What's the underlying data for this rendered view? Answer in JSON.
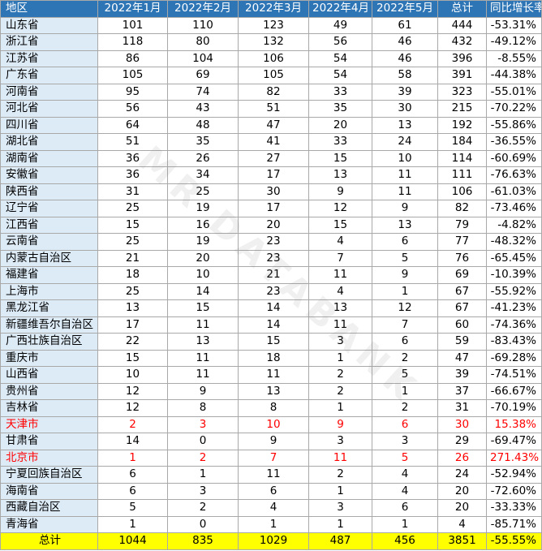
{
  "headers": [
    "地区",
    "2022年1月",
    "2022年2月",
    "2022年3月",
    "2022年4月",
    "2022年5月",
    "总计",
    "同比增长率"
  ],
  "rows": [
    {
      "region": "山东省",
      "m1": "101",
      "m2": "110",
      "m3": "123",
      "m4": "49",
      "m5": "61",
      "total": "444",
      "rate": "-53.31%"
    },
    {
      "region": "浙江省",
      "m1": "118",
      "m2": "80",
      "m3": "132",
      "m4": "56",
      "m5": "46",
      "total": "432",
      "rate": "-49.12%"
    },
    {
      "region": "江苏省",
      "m1": "86",
      "m2": "104",
      "m3": "106",
      "m4": "54",
      "m5": "46",
      "total": "396",
      "rate": "-8.55%"
    },
    {
      "region": "广东省",
      "m1": "105",
      "m2": "69",
      "m3": "105",
      "m4": "54",
      "m5": "58",
      "total": "391",
      "rate": "-44.38%"
    },
    {
      "region": "河南省",
      "m1": "95",
      "m2": "74",
      "m3": "82",
      "m4": "33",
      "m5": "39",
      "total": "323",
      "rate": "-55.01%"
    },
    {
      "region": "河北省",
      "m1": "56",
      "m2": "43",
      "m3": "51",
      "m4": "35",
      "m5": "30",
      "total": "215",
      "rate": "-70.22%"
    },
    {
      "region": "四川省",
      "m1": "64",
      "m2": "48",
      "m3": "47",
      "m4": "20",
      "m5": "13",
      "total": "192",
      "rate": "-55.86%"
    },
    {
      "region": "湖北省",
      "m1": "51",
      "m2": "35",
      "m3": "41",
      "m4": "33",
      "m5": "24",
      "total": "184",
      "rate": "-36.55%"
    },
    {
      "region": "湖南省",
      "m1": "36",
      "m2": "26",
      "m3": "27",
      "m4": "15",
      "m5": "10",
      "total": "114",
      "rate": "-60.69%"
    },
    {
      "region": "安徽省",
      "m1": "36",
      "m2": "34",
      "m3": "17",
      "m4": "13",
      "m5": "11",
      "total": "111",
      "rate": "-76.63%"
    },
    {
      "region": "陕西省",
      "m1": "31",
      "m2": "25",
      "m3": "30",
      "m4": "9",
      "m5": "11",
      "total": "106",
      "rate": "-61.03%"
    },
    {
      "region": "辽宁省",
      "m1": "25",
      "m2": "19",
      "m3": "17",
      "m4": "12",
      "m5": "9",
      "total": "82",
      "rate": "-73.46%"
    },
    {
      "region": "江西省",
      "m1": "15",
      "m2": "16",
      "m3": "20",
      "m4": "15",
      "m5": "13",
      "total": "79",
      "rate": "-4.82%"
    },
    {
      "region": "云南省",
      "m1": "25",
      "m2": "19",
      "m3": "23",
      "m4": "4",
      "m5": "6",
      "total": "77",
      "rate": "-48.32%"
    },
    {
      "region": "内蒙古自治区",
      "m1": "21",
      "m2": "20",
      "m3": "23",
      "m4": "7",
      "m5": "5",
      "total": "76",
      "rate": "-65.45%"
    },
    {
      "region": "福建省",
      "m1": "18",
      "m2": "10",
      "m3": "21",
      "m4": "11",
      "m5": "9",
      "total": "69",
      "rate": "-10.39%"
    },
    {
      "region": "上海市",
      "m1": "25",
      "m2": "14",
      "m3": "23",
      "m4": "4",
      "m5": "1",
      "total": "67",
      "rate": "-55.92%"
    },
    {
      "region": "黑龙江省",
      "m1": "13",
      "m2": "15",
      "m3": "14",
      "m4": "13",
      "m5": "12",
      "total": "67",
      "rate": "-41.23%"
    },
    {
      "region": "新疆维吾尔自治区",
      "m1": "17",
      "m2": "11",
      "m3": "14",
      "m4": "11",
      "m5": "7",
      "total": "60",
      "rate": "-74.36%"
    },
    {
      "region": "广西壮族自治区",
      "m1": "22",
      "m2": "13",
      "m3": "15",
      "m4": "3",
      "m5": "6",
      "total": "59",
      "rate": "-83.43%"
    },
    {
      "region": "重庆市",
      "m1": "15",
      "m2": "11",
      "m3": "18",
      "m4": "1",
      "m5": "2",
      "total": "47",
      "rate": "-69.28%"
    },
    {
      "region": "山西省",
      "m1": "10",
      "m2": "11",
      "m3": "11",
      "m4": "2",
      "m5": "5",
      "total": "39",
      "rate": "-74.51%"
    },
    {
      "region": "贵州省",
      "m1": "12",
      "m2": "9",
      "m3": "13",
      "m4": "2",
      "m5": "1",
      "total": "37",
      "rate": "-66.67%"
    },
    {
      "region": "吉林省",
      "m1": "12",
      "m2": "8",
      "m3": "8",
      "m4": "1",
      "m5": "2",
      "total": "31",
      "rate": "-70.19%"
    },
    {
      "region": "天津市",
      "m1": "2",
      "m2": "3",
      "m3": "10",
      "m4": "9",
      "m5": "6",
      "total": "30",
      "rate": "15.38%",
      "highlight": true
    },
    {
      "region": "甘肃省",
      "m1": "14",
      "m2": "0",
      "m3": "9",
      "m4": "3",
      "m5": "3",
      "total": "29",
      "rate": "-69.47%"
    },
    {
      "region": "北京市",
      "m1": "1",
      "m2": "2",
      "m3": "7",
      "m4": "11",
      "m5": "5",
      "total": "26",
      "rate": "271.43%",
      "highlight": true
    },
    {
      "region": "宁夏回族自治区",
      "m1": "6",
      "m2": "1",
      "m3": "11",
      "m4": "2",
      "m5": "4",
      "total": "24",
      "rate": "-52.94%"
    },
    {
      "region": "海南省",
      "m1": "6",
      "m2": "3",
      "m3": "6",
      "m4": "1",
      "m5": "4",
      "total": "20",
      "rate": "-72.60%"
    },
    {
      "region": "西藏自治区",
      "m1": "5",
      "m2": "2",
      "m3": "4",
      "m4": "3",
      "m5": "6",
      "total": "20",
      "rate": "-33.33%"
    },
    {
      "region": "青海省",
      "m1": "1",
      "m2": "0",
      "m3": "1",
      "m4": "1",
      "m5": "1",
      "total": "4",
      "rate": "-85.71%"
    }
  ],
  "total_row": {
    "region": "总计",
    "m1": "1044",
    "m2": "835",
    "m3": "1029",
    "m4": "487",
    "m5": "456",
    "total": "3851",
    "rate": "-55.55%"
  },
  "watermark": "MR DATABANK",
  "colors": {
    "header_bg": "#2e75b6",
    "region_bg": "#ddebf7",
    "total_bg": "#ffff00",
    "highlight_text": "#ff0000"
  }
}
